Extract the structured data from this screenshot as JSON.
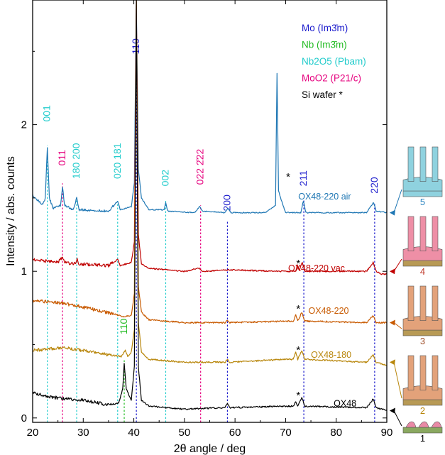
{
  "chart_data": {
    "type": "line",
    "title": "",
    "xlabel": "2θ angle / deg",
    "ylabel": "Intensity / abs. counts",
    "xlim": [
      20,
      90
    ],
    "ylim": [
      -0.03,
      2.85
    ],
    "x_ticks": [
      "20",
      "30",
      "40",
      "50",
      "60",
      "70",
      "80",
      "90"
    ],
    "y_ticks": [
      "0",
      "1",
      "2"
    ],
    "grid": false,
    "legend": {
      "placement": "top-right",
      "entries": [
        {
          "text": "Mo (Im3̄m)",
          "color": "#1a1acc"
        },
        {
          "text": "Nb (Im3̄m)",
          "color": "#22bb22"
        },
        {
          "text": "Nb2O5 (Pbam)",
          "color": "#22cccc"
        },
        {
          "text": "MoO2 (P21/c)",
          "color": "#e6007e"
        },
        {
          "text": "Si wafer *",
          "color": "#000000"
        }
      ]
    },
    "series": [
      {
        "name": "OX48-220 air",
        "color": "#1f77b4",
        "baseline": 1.4,
        "points": [
          [
            20,
            1.52
          ],
          [
            22,
            1.45
          ],
          [
            22.5,
            1.5
          ],
          [
            22.9,
            1.85
          ],
          [
            23.3,
            1.5
          ],
          [
            24,
            1.43
          ],
          [
            25.5,
            1.45
          ],
          [
            25.9,
            1.58
          ],
          [
            26.3,
            1.45
          ],
          [
            28,
            1.42
          ],
          [
            28.7,
            1.5
          ],
          [
            29.2,
            1.42
          ],
          [
            35,
            1.41
          ],
          [
            36.8,
            1.48
          ],
          [
            37.3,
            1.42
          ],
          [
            39.5,
            1.44
          ],
          [
            40.1,
            1.6
          ],
          [
            40.5,
            2.85
          ],
          [
            40.9,
            1.7
          ],
          [
            41.5,
            1.5
          ],
          [
            43,
            1.42
          ],
          [
            46,
            1.42
          ],
          [
            46.3,
            1.47
          ],
          [
            46.7,
            1.41
          ],
          [
            52,
            1.4
          ],
          [
            53,
            1.44
          ],
          [
            53.6,
            1.41
          ],
          [
            58,
            1.4
          ],
          [
            58.6,
            1.43
          ],
          [
            59.2,
            1.4
          ],
          [
            66,
            1.4
          ],
          [
            68,
            1.45
          ],
          [
            68.3,
            2.35
          ],
          [
            68.6,
            1.55
          ],
          [
            69,
            1.5
          ],
          [
            70,
            1.4
          ],
          [
            73,
            1.4
          ],
          [
            73.5,
            1.48
          ],
          [
            74,
            1.4
          ],
          [
            86,
            1.4
          ],
          [
            87.4,
            1.47
          ],
          [
            87.9,
            1.41
          ],
          [
            90,
            1.4
          ]
        ]
      },
      {
        "name": "OX48-220 vac",
        "color": "#c00000",
        "baseline": 1.0,
        "points": [
          [
            20,
            1.08
          ],
          [
            25,
            1.06
          ],
          [
            25.9,
            1.1
          ],
          [
            26.3,
            1.06
          ],
          [
            28.5,
            1.05
          ],
          [
            28.8,
            1.08
          ],
          [
            29.2,
            1.05
          ],
          [
            35,
            1.04
          ],
          [
            36.8,
            1.08
          ],
          [
            37.3,
            1.04
          ],
          [
            39.5,
            1.06
          ],
          [
            40.1,
            1.2
          ],
          [
            40.5,
            2.85
          ],
          [
            40.9,
            1.25
          ],
          [
            41.5,
            1.05
          ],
          [
            43,
            1.02
          ],
          [
            50,
            1.0
          ],
          [
            53,
            1.02
          ],
          [
            53.6,
            1.0
          ],
          [
            58.5,
            1.01
          ],
          [
            70,
            1.0
          ],
          [
            72,
            1.0
          ],
          [
            72.3,
            1.04
          ],
          [
            72.7,
            1.01
          ],
          [
            73.3,
            1.06
          ],
          [
            73.8,
            1.0
          ],
          [
            86,
            1.0
          ],
          [
            87.3,
            1.06
          ],
          [
            87.9,
            1.0
          ],
          [
            89,
            0.98
          ],
          [
            90,
            0.98
          ]
        ]
      },
      {
        "name": "OX48-220",
        "color": "#c85a00",
        "baseline": 0.65,
        "points": [
          [
            20,
            0.8
          ],
          [
            24,
            0.79
          ],
          [
            28,
            0.77
          ],
          [
            32,
            0.74
          ],
          [
            36,
            0.71
          ],
          [
            38,
            0.69
          ],
          [
            39.5,
            0.7
          ],
          [
            40.1,
            0.85
          ],
          [
            40.5,
            2.85
          ],
          [
            40.9,
            0.9
          ],
          [
            41.5,
            0.72
          ],
          [
            43,
            0.67
          ],
          [
            50,
            0.65
          ],
          [
            58,
            0.65
          ],
          [
            58.5,
            0.67
          ],
          [
            59,
            0.65
          ],
          [
            70,
            0.66
          ],
          [
            71.5,
            0.66
          ],
          [
            72,
            0.7
          ],
          [
            72.4,
            0.66
          ],
          [
            73.2,
            0.72
          ],
          [
            73.8,
            0.66
          ],
          [
            86,
            0.65
          ],
          [
            87.3,
            0.7
          ],
          [
            87.9,
            0.65
          ],
          [
            90,
            0.65
          ]
        ]
      },
      {
        "name": "OX48-180",
        "color": "#b8860b",
        "baseline": 0.38,
        "points": [
          [
            20,
            0.46
          ],
          [
            26,
            0.48
          ],
          [
            30,
            0.46
          ],
          [
            35,
            0.43
          ],
          [
            37.5,
            0.42
          ],
          [
            38.3,
            0.46
          ],
          [
            38.8,
            0.42
          ],
          [
            39.5,
            0.45
          ],
          [
            40.1,
            0.6
          ],
          [
            40.5,
            2.85
          ],
          [
            40.9,
            0.65
          ],
          [
            41.5,
            0.45
          ],
          [
            43,
            0.4
          ],
          [
            50,
            0.38
          ],
          [
            58,
            0.38
          ],
          [
            58.5,
            0.4
          ],
          [
            59,
            0.38
          ],
          [
            70,
            0.4
          ],
          [
            71.5,
            0.4
          ],
          [
            72,
            0.45
          ],
          [
            72.4,
            0.4
          ],
          [
            73.2,
            0.46
          ],
          [
            73.8,
            0.4
          ],
          [
            86,
            0.38
          ],
          [
            87.3,
            0.43
          ],
          [
            87.9,
            0.38
          ],
          [
            90,
            0.36
          ]
        ]
      },
      {
        "name": "OX48",
        "color": "#000000",
        "baseline": 0.05,
        "points": [
          [
            20,
            0.17
          ],
          [
            24,
            0.14
          ],
          [
            30,
            0.12
          ],
          [
            35,
            0.09
          ],
          [
            37,
            0.1
          ],
          [
            37.8,
            0.2
          ],
          [
            38.1,
            0.37
          ],
          [
            38.5,
            0.2
          ],
          [
            39.5,
            0.12
          ],
          [
            40.1,
            0.35
          ],
          [
            40.5,
            2.85
          ],
          [
            40.9,
            0.35
          ],
          [
            41.5,
            0.12
          ],
          [
            43,
            0.08
          ],
          [
            50,
            0.06
          ],
          [
            58,
            0.07
          ],
          [
            58.5,
            0.1
          ],
          [
            59,
            0.07
          ],
          [
            70,
            0.08
          ],
          [
            71.5,
            0.08
          ],
          [
            72,
            0.11
          ],
          [
            72.4,
            0.08
          ],
          [
            73.2,
            0.14
          ],
          [
            73.8,
            0.08
          ],
          [
            86,
            0.07
          ],
          [
            87.3,
            0.13
          ],
          [
            87.9,
            0.07
          ],
          [
            90,
            0.05
          ]
        ]
      }
    ],
    "series_labels": [
      {
        "text": "OX48-220 air",
        "color": "#1f77b4",
        "x": 72.5,
        "y": 1.49
      },
      {
        "text": "OX48-220 vac",
        "color": "#c00000",
        "x": 70.5,
        "y": 1.0
      },
      {
        "text": "OX48-220",
        "color": "#c85a00",
        "x": 74.5,
        "y": 0.71
      },
      {
        "text": "OX48-180",
        "color": "#b8860b",
        "x": 75.0,
        "y": 0.41
      },
      {
        "text": "OX48",
        "color": "#000000",
        "x": 79.5,
        "y": 0.08
      }
    ],
    "reference_lines": [
      {
        "x": 22.9,
        "color": "#22cccc",
        "top": 1.86,
        "label": "001",
        "label_y": 2.02
      },
      {
        "x": 25.9,
        "color": "#e6007e",
        "top": 1.6,
        "label": "011",
        "label_y": 1.72
      },
      {
        "x": 28.7,
        "color": "#22cccc",
        "top": 1.5,
        "label": "180 200",
        "label_y": 1.63
      },
      {
        "x": 36.8,
        "color": "#22cccc",
        "top": 1.48,
        "label": "020 181",
        "label_y": 1.63
      },
      {
        "x": 38.1,
        "color": "#22bb22",
        "top": 0.4,
        "label": "110",
        "label_y": 0.57
      },
      {
        "x": 40.5,
        "color": "#1a1acc",
        "top": 2.85,
        "label": "110",
        "label_y": 2.48
      },
      {
        "x": 46.3,
        "color": "#22cccc",
        "top": 1.48,
        "label": "002",
        "label_y": 1.58
      },
      {
        "x": 53.2,
        "color": "#e6007e",
        "top": 1.45,
        "label": "022 2̄22",
        "label_y": 1.59
      },
      {
        "x": 58.5,
        "color": "#1a1acc",
        "top": 1.34,
        "label": "200",
        "label_y": 1.41
      },
      {
        "x": 73.6,
        "color": "#1a1acc",
        "top": 1.49,
        "label": "211",
        "label_y": 1.58
      },
      {
        "x": 87.6,
        "color": "#1a1acc",
        "top": 1.47,
        "label": "220",
        "label_y": 1.53
      }
    ],
    "asterisks": [
      {
        "x": 70.5,
        "y": 1.62
      },
      {
        "x": 72.5,
        "y": 1.03
      },
      {
        "x": 72.5,
        "y": 0.72
      },
      {
        "x": 72.5,
        "y": 0.44
      },
      {
        "x": 72.5,
        "y": 0.13
      }
    ]
  },
  "side_panel": {
    "items": [
      {
        "number": "5",
        "number_color": "#2e86c1",
        "pillar_color": "#8fd2df",
        "base_color": "#8fd2df",
        "arrow_color": "#1f77b4",
        "series_y": 1.4
      },
      {
        "number": "4",
        "number_color": "#c0392b",
        "pillar_color": "#ee8fa6",
        "base_color": "#b89a55",
        "arrow_color": "#c00000",
        "series_y": 1.0
      },
      {
        "number": "3",
        "number_color": "#a0522d",
        "pillar_color": "#e3a27a",
        "base_color": "#b89a55",
        "arrow_color": "#c85a00",
        "series_y": 0.65
      },
      {
        "number": "2",
        "number_color": "#b8860b",
        "pillar_color": "#e3a27a",
        "base_color": "#b89a55",
        "arrow_color": "#b8860b",
        "series_y": 0.38
      },
      {
        "number": "1",
        "number_color": "#000000",
        "pillar_color": "#e98aa6",
        "base_color": "#8aa860",
        "arrow_color": "#000000",
        "series_y": 0.05
      }
    ]
  }
}
